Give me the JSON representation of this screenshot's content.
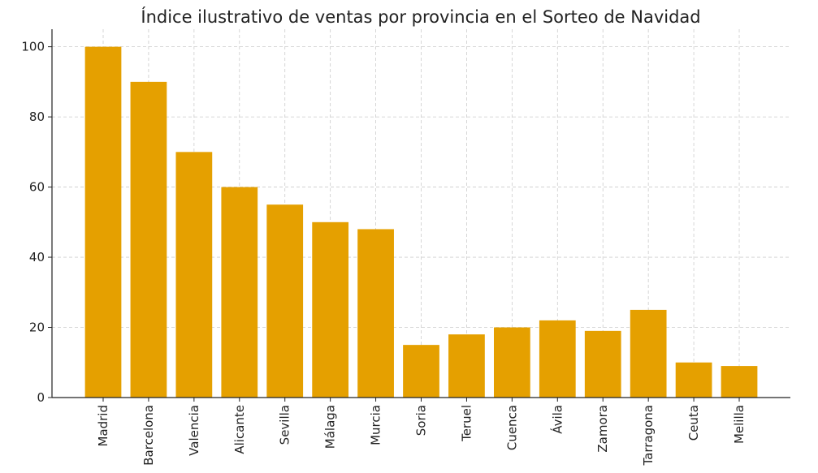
{
  "chart_data": {
    "type": "bar",
    "title": "Índice ilustrativo de ventas por provincia en el Sorteo de Navidad",
    "categories": [
      "Madrid",
      "Barcelona",
      "Valencia",
      "Alicante",
      "Sevilla",
      "Málaga",
      "Murcia",
      "Soria",
      "Teruel",
      "Cuenca",
      "Ávila",
      "Zamora",
      "Tarragona",
      "Ceuta",
      "Melilla"
    ],
    "values": [
      100,
      90,
      70,
      60,
      55,
      50,
      48,
      15,
      18,
      20,
      22,
      19,
      25,
      10,
      9
    ],
    "color": "#e5a000",
    "ylim": [
      0,
      105
    ],
    "yticks": [
      0,
      20,
      40,
      60,
      80,
      100
    ],
    "grid": true
  }
}
